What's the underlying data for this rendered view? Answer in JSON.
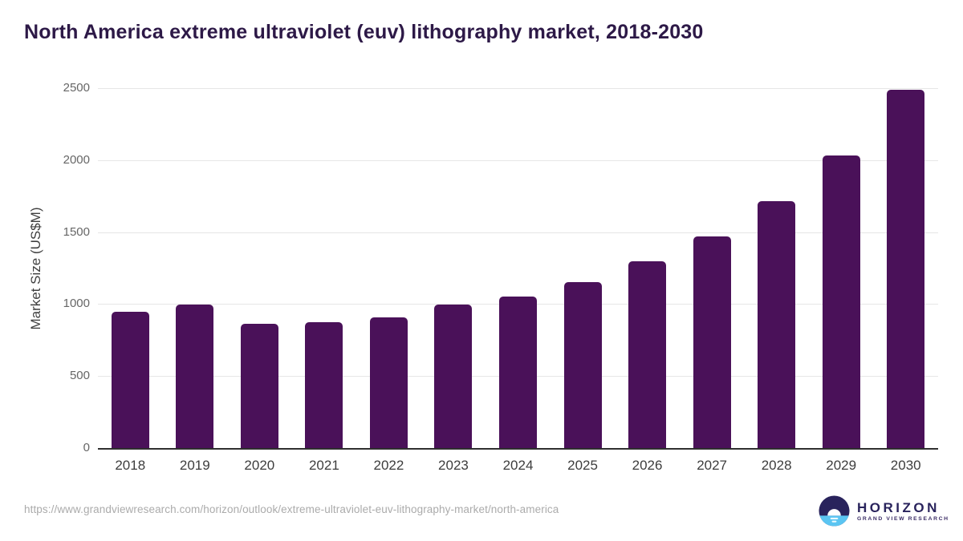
{
  "header": {
    "title": "North America extreme ultraviolet (euv) lithography market, 2018-2030"
  },
  "chart_data": {
    "type": "bar",
    "title": "North America extreme ultraviolet (euv) lithography market, 2018-2030",
    "categories": [
      "2018",
      "2019",
      "2020",
      "2021",
      "2022",
      "2023",
      "2024",
      "2025",
      "2026",
      "2027",
      "2028",
      "2029",
      "2030"
    ],
    "values": [
      945,
      995,
      865,
      875,
      905,
      995,
      1050,
      1155,
      1295,
      1470,
      1715,
      2030,
      2490
    ],
    "xlabel": "",
    "ylabel": "Market Size (US$M)",
    "ylim": [
      0,
      2500
    ],
    "yticks": [
      0,
      500,
      1000,
      1500,
      2000,
      2500
    ],
    "grid": true,
    "legend": false,
    "bar_color": "#4a1159"
  },
  "footer": {
    "source_url": "https://www.grandviewresearch.com/horizon/outlook/extreme-ultraviolet-euv-lithography-market/north-america",
    "logo": {
      "brand": "HORIZON",
      "sub_brand": "GRAND VIEW RESEARCH"
    }
  },
  "colors": {
    "bar": "#4a1159",
    "title_text": "#2d1947",
    "axis_label": "#3f3f3f",
    "x_tick_label": "#3d3d3d",
    "y_tick_label": "#666666",
    "gridline": "#e6e6e6",
    "axis_line": "#2f2f2f",
    "url_text": "#ababab",
    "logo_navy": "#29235c",
    "logo_blue": "#5bc5f2",
    "logo_sun": "#ffffff"
  }
}
